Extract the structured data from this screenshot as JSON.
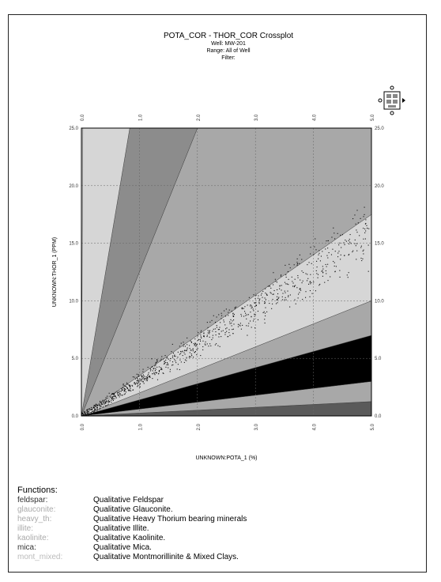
{
  "chart_data": {
    "type": "scatter",
    "title": "POTA_COR - THOR_COR Crossplot",
    "subtitle_lines": [
      "Well: MW-201",
      "Range: All of Well",
      "Filter:"
    ],
    "xlabel": "UNKNOWN:POTA_1 (%)",
    "ylabel": "UNKNOWN:THOR_1 (PPM)",
    "xlim": [
      0,
      5
    ],
    "ylim": [
      0,
      25
    ],
    "x_ticks": [
      "0.0",
      "1.0",
      "2.0",
      "3.0",
      "4.0",
      "5.0"
    ],
    "y_ticks": [
      "0.0",
      "5.0",
      "10.0",
      "15.0",
      "20.0",
      "25.0"
    ],
    "grid": true,
    "region_boundaries_th_k_ratio": [
      0.25,
      0.6,
      1.4,
      2.0,
      3.5,
      12.5,
      30
    ],
    "region_colors": {
      "background": "#c8c8c8",
      "light": "#d6d6d6",
      "medium": "#a8a8a8",
      "dark": "#8c8c8c",
      "black": "#000000",
      "darkest": "#5a5a5a"
    },
    "scatter_trend": {
      "x_range": [
        0,
        4.95
      ],
      "th_k_ratio_center": 3.2,
      "th_k_ratio_spread": 0.8,
      "point_count": 900
    }
  },
  "legend": {
    "title": "Functions:",
    "items": [
      {
        "key": "feldspar:",
        "desc": "Qualitative Feldspar",
        "color": "#333333"
      },
      {
        "key": "glauconite:",
        "desc": "Qualitative Glauconite.",
        "color": "#aaaaaa"
      },
      {
        "key": "heavy_th:",
        "desc": "Qualitative Heavy Thorium bearing minerals",
        "color": "#aaaaaa"
      },
      {
        "key": "illite:",
        "desc": "Qualitative Illite.",
        "color": "#aaaaaa"
      },
      {
        "key": "kaolinite:",
        "desc": "Qualitative Kaolinite.",
        "color": "#aaaaaa"
      },
      {
        "key": "mica:",
        "desc": "Qualitative Mica.",
        "color": "#333333"
      },
      {
        "key": "mont_mixed:",
        "desc": "Qualitative Montmorillinite & Mixed Clays.",
        "color": "#bbbbbb"
      }
    ]
  }
}
